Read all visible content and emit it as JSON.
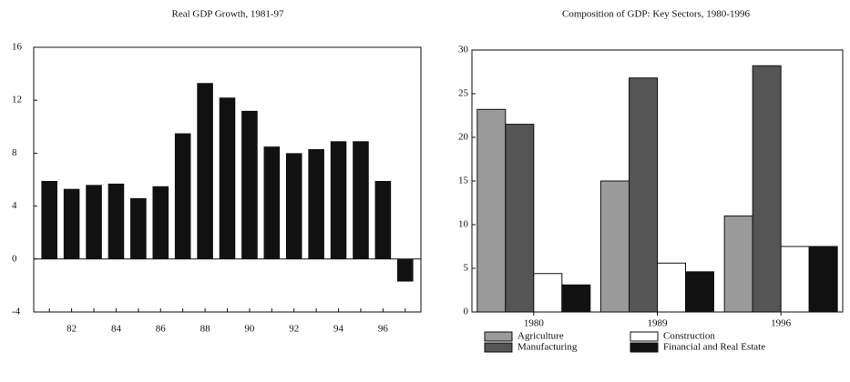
{
  "chart_data": [
    {
      "type": "bar",
      "title": "Real GDP Growth, 1981-97",
      "categories": [
        null,
        "82",
        null,
        "84",
        null,
        "86",
        null,
        "88",
        null,
        "90",
        null,
        "92",
        null,
        "94",
        null,
        "96",
        null
      ],
      "values": [
        5.9,
        5.3,
        5.6,
        5.7,
        4.6,
        5.5,
        9.5,
        13.3,
        12.2,
        11.2,
        8.5,
        8.0,
        8.3,
        8.9,
        8.9,
        5.9,
        -1.7
      ],
      "color": "#111111",
      "ylim": [
        -4,
        16
      ],
      "yticks": [
        -4,
        0,
        4,
        8,
        12,
        16
      ],
      "grid": false
    },
    {
      "type": "grouped-bar",
      "title": "Composition of GDP: Key Sectors, 1980-1996",
      "categories": [
        "1980",
        "1989",
        "1996"
      ],
      "series": [
        {
          "name": "Agriculture",
          "color": "#9a9a9a",
          "values": [
            23.2,
            15.0,
            11.0
          ]
        },
        {
          "name": "Manufacturing",
          "color": "#555555",
          "values": [
            21.5,
            26.8,
            28.2
          ]
        },
        {
          "name": "Construction",
          "color": "#ffffff",
          "values": [
            4.4,
            5.6,
            7.5
          ]
        },
        {
          "name": "Financial and Real Estate",
          "color": "#111111",
          "values": [
            3.1,
            4.6,
            7.5
          ]
        }
      ],
      "ylim": [
        0,
        30
      ],
      "yticks": [
        0,
        5,
        10,
        15,
        20,
        25,
        30
      ],
      "grid": false,
      "legend": "bottom"
    }
  ]
}
